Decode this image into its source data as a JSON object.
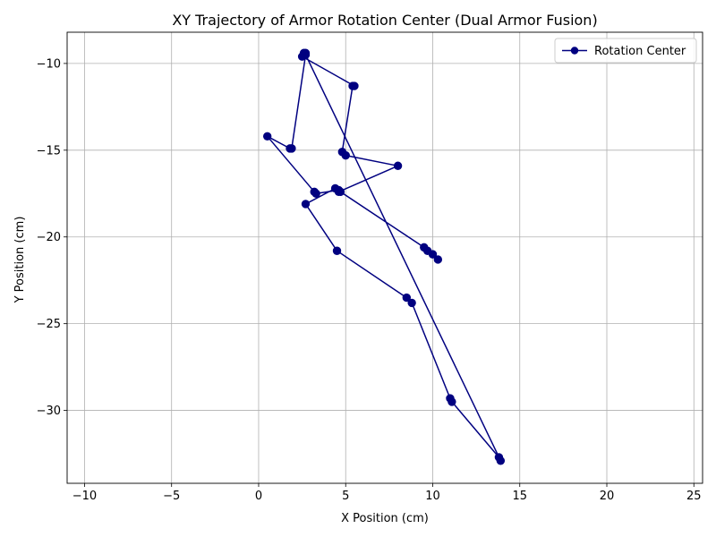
{
  "chart_data": {
    "type": "line",
    "title": "XY Trajectory of Armor Rotation Center (Dual Armor Fusion)",
    "xlabel": "X Position (cm)",
    "ylabel": "Y Position (cm)",
    "xlim": [
      -11,
      25.5
    ],
    "ylim": [
      -34.2,
      -8.2
    ],
    "xticks": [
      -10,
      -5,
      0,
      5,
      10,
      15,
      20,
      25
    ],
    "yticks": [
      -30,
      -25,
      -20,
      -15,
      -10
    ],
    "grid": true,
    "legend_position": "top-right",
    "series": [
      {
        "name": "Rotation Center",
        "color": "#000080",
        "marker": "circle",
        "x": [
          2.6,
          2.7,
          2.5,
          5.5,
          5.4,
          4.8,
          5.0,
          8.0,
          4.6,
          4.4,
          2.7,
          4.5,
          8.5,
          8.8,
          11.0,
          11.1,
          13.8,
          13.9,
          2.7,
          1.9,
          1.8,
          0.5,
          3.2,
          3.3,
          4.6,
          4.7,
          9.5,
          9.7,
          10.0,
          10.3
        ],
        "y": [
          -9.4,
          -9.4,
          -9.6,
          -11.3,
          -11.3,
          -15.1,
          -15.3,
          -15.9,
          -17.4,
          -17.2,
          -18.1,
          -20.8,
          -23.5,
          -23.8,
          -29.3,
          -29.5,
          -32.7,
          -32.9,
          -9.5,
          -14.9,
          -14.9,
          -14.2,
          -17.4,
          -17.5,
          -17.3,
          -17.4,
          -20.6,
          -20.8,
          -21.0,
          -21.3
        ]
      }
    ]
  }
}
